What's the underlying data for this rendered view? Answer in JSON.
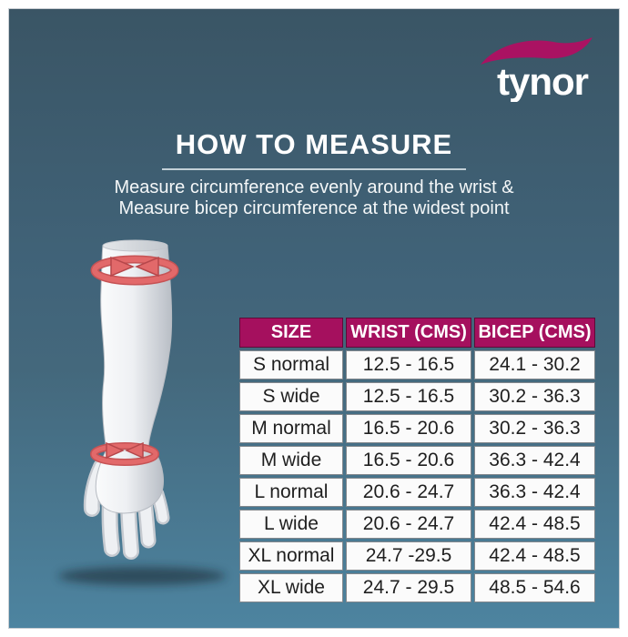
{
  "brand": {
    "logo_text": "tynor",
    "swoosh_color": "#aa1262"
  },
  "header": {
    "title": "HOW TO MEASURE",
    "subtitle_line1": "Measure circumference evenly around the wrist &",
    "subtitle_line2": "Measure bicep circumference at the widest point"
  },
  "illustration": {
    "description": "3D arm with red circular measuring arrows at bicep and wrist",
    "bands": [
      "bicep",
      "wrist"
    ],
    "arrow_color": "#e2696a",
    "arrow_outline_color": "#b6474b"
  },
  "colors": {
    "background_top": "#3a5565",
    "background_bottom": "#4d84a0",
    "table_header": "#a5105e",
    "frame_border": "#ffffff",
    "text": "#ffffff"
  },
  "chart_data": {
    "type": "table",
    "title": "HOW TO MEASURE",
    "columns": [
      "SIZE",
      "WRIST (CMS)",
      "BICEP (CMS)"
    ],
    "rows": [
      [
        "S normal",
        "12.5 - 16.5",
        "24.1 - 30.2"
      ],
      [
        "S wide",
        "12.5 - 16.5",
        "30.2 - 36.3"
      ],
      [
        "M normal",
        "16.5 - 20.6",
        "30.2 - 36.3"
      ],
      [
        "M wide",
        "16.5 - 20.6",
        "36.3 - 42.4"
      ],
      [
        "L normal",
        "20.6 - 24.7",
        "36.3 - 42.4"
      ],
      [
        "L wide",
        "20.6 - 24.7",
        "42.4 - 48.5"
      ],
      [
        "XL normal",
        "24.7 -29.5",
        "42.4 - 48.5"
      ],
      [
        "XL wide",
        "24.7 - 29.5",
        "48.5 - 54.6"
      ]
    ]
  }
}
